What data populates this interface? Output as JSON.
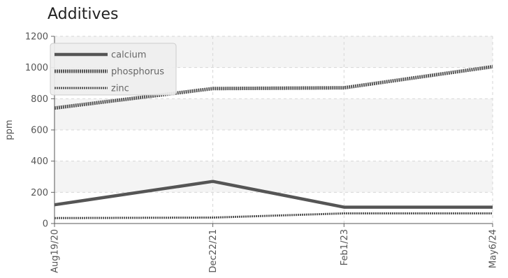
{
  "chart_data": {
    "type": "line",
    "title": "Additives",
    "ylabel": "ppm",
    "xlabel": "",
    "categories": [
      "Aug19/20",
      "Dec22/21",
      "Feb1/23",
      "May6/24"
    ],
    "x_dates": [
      "2020-08-19",
      "2021-12-22",
      "2023-02-01",
      "2024-05-06"
    ],
    "ylim": [
      0,
      1200
    ],
    "yticks": [
      0,
      200,
      400,
      600,
      800,
      1000,
      1200
    ],
    "grid": true,
    "legend_position": "top-left",
    "series": [
      {
        "name": "calcium",
        "values": [
          120,
          270,
          105,
          105
        ],
        "color": "#555555",
        "style": "solid"
      },
      {
        "name": "phosphorus",
        "values": [
          740,
          865,
          870,
          1005
        ],
        "color": "#555555",
        "style": "dotted-thick"
      },
      {
        "name": "zinc",
        "values": [
          35,
          38,
          65,
          65
        ],
        "color": "#555555",
        "style": "dotted-thin"
      }
    ]
  }
}
